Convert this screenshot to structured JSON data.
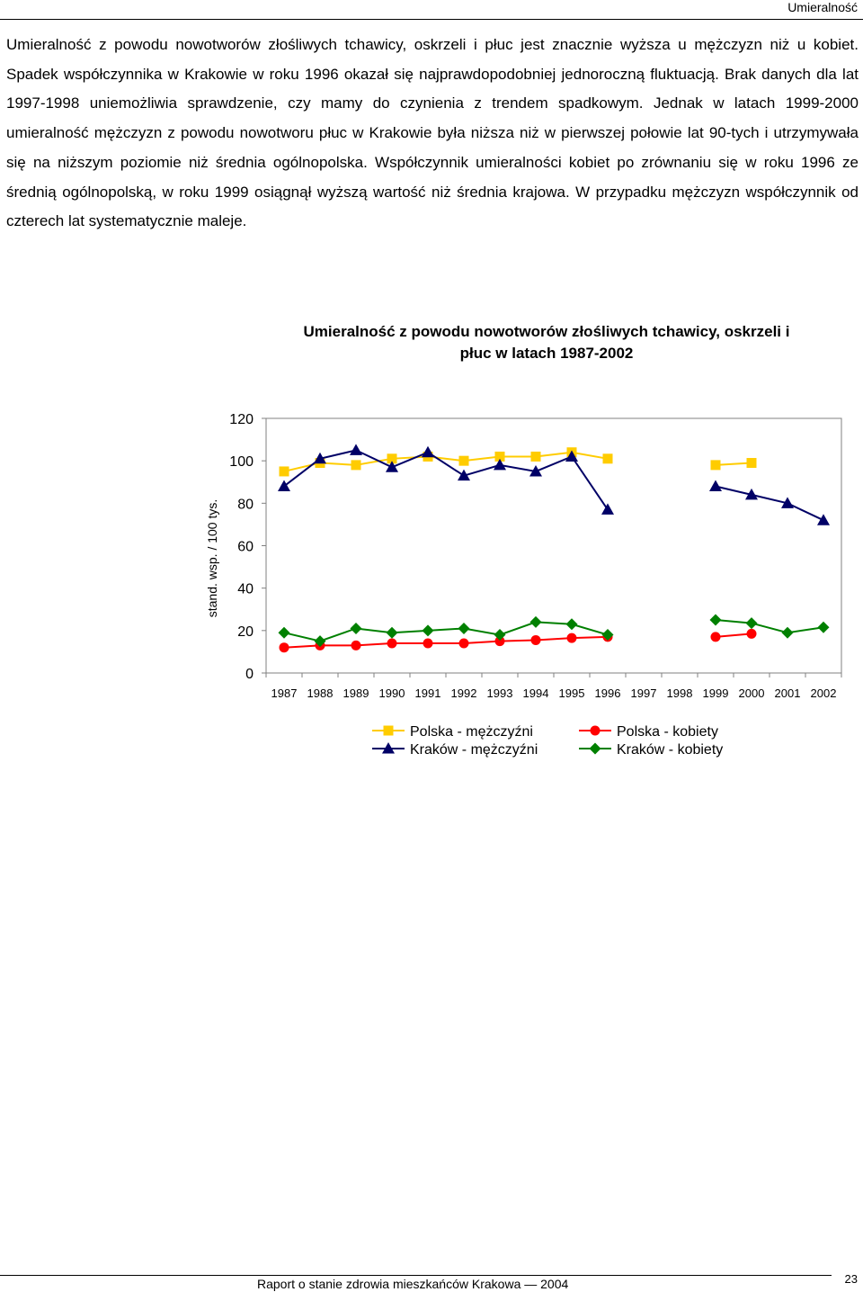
{
  "header": {
    "running_title": "Umieralność"
  },
  "body": {
    "paragraph": "Umieralność z powodu nowotworów złośliwych tchawicy, oskrzeli i płuc jest znacznie wyższa u mężczyzn niż u kobiet. Spadek współczynnika w Krakowie w roku 1996 okazał się najprawdopodobniej jednoroczną fluktuacją. Brak danych dla lat 1997-1998 uniemożliwia sprawdzenie, czy mamy do czynienia z trendem spadkowym. Jednak w latach 1999-2000 umieralność mężczyzn z powodu nowotworu płuc w Krakowie była niższa niż w pierwszej połowie lat 90-tych i utrzymywała się na niższym poziomie niż średnia ogólnopolska. Współczynnik umieralności kobiet po zrównaniu się w roku 1996 ze średnią ogólnopolską, w roku 1999 osiągnął wyższą wartość niż średnia krajowa. W przypadku mężczyzn współczynnik od czterech lat systematycznie maleje."
  },
  "chart_data": {
    "type": "line",
    "title": "Umieralność z powodu nowotworów złośliwych tchawicy, oskrzeli i płuc w latach 1987-2002",
    "title_lines": [
      "Umieralność z powodu nowotworów złośliwych tchawicy, oskrzeli i",
      "płuc w latach 1987-2002"
    ],
    "xlabel": "",
    "ylabel": "stand. wsp. / 100 tys.",
    "ylim": [
      0,
      120
    ],
    "yticks": [
      0,
      20,
      40,
      60,
      80,
      100,
      120
    ],
    "x": [
      "1987",
      "1988",
      "1989",
      "1990",
      "1991",
      "1992",
      "1993",
      "1994",
      "1995",
      "1996",
      "1997",
      "1998",
      "1999",
      "2000",
      "2001",
      "2002"
    ],
    "grid": false,
    "legend_position": "bottom",
    "series": [
      {
        "name": "Polska - mężczyźni",
        "marker": "square",
        "color": "#FFCC00",
        "values": [
          95,
          99,
          98,
          101,
          102,
          100,
          102,
          102,
          104,
          101,
          null,
          null,
          98,
          99,
          null,
          null
        ]
      },
      {
        "name": "Kraków - mężczyźni",
        "marker": "triangle",
        "color": "#000066",
        "values": [
          88,
          101,
          105,
          97,
          104,
          93,
          98,
          95,
          102,
          77,
          null,
          null,
          88,
          84,
          80,
          72
        ]
      },
      {
        "name": "Polska - kobiety",
        "marker": "circle",
        "color": "#FF0000",
        "values": [
          12,
          13,
          13,
          14,
          14,
          14,
          15,
          15.5,
          16.5,
          17,
          null,
          null,
          17,
          18.5,
          null,
          null
        ]
      },
      {
        "name": "Kraków - kobiety",
        "marker": "diamond",
        "color": "#008000",
        "values": [
          19,
          15,
          21,
          19,
          20,
          21,
          18,
          24,
          23,
          18,
          null,
          null,
          25,
          23.5,
          19,
          21.5
        ]
      }
    ]
  },
  "footer": {
    "report_title": "Raport o stanie zdrowia mieszkańców Krakowa — 2004",
    "page_number": "23"
  }
}
